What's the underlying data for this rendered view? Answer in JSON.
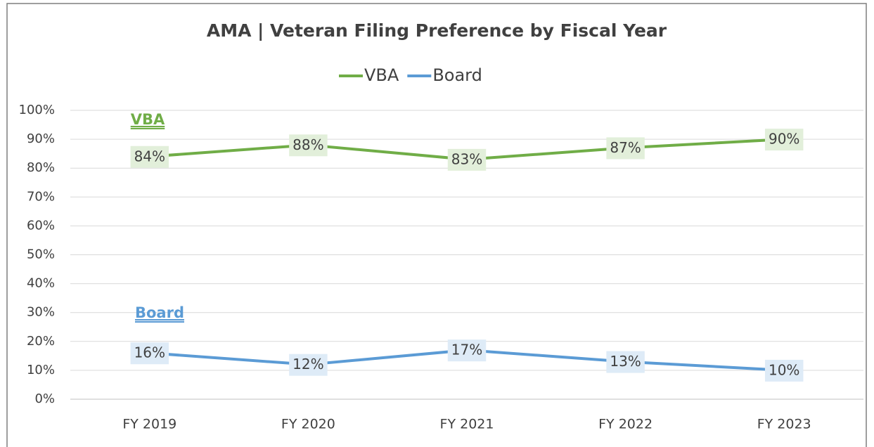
{
  "chart_data": {
    "type": "line",
    "title": "AMA | Veteran Filing Preference by Fiscal Year",
    "categories": [
      "FY 2019",
      "FY 2020",
      "FY 2021",
      "FY 2022",
      "FY 2023"
    ],
    "series": [
      {
        "name": "VBA",
        "color": "#70ad47",
        "label_bg": "#e2efda",
        "values": [
          84,
          88,
          83,
          87,
          90
        ],
        "value_labels": [
          "84%",
          "88%",
          "83%",
          "87%",
          "90%"
        ]
      },
      {
        "name": "Board",
        "color": "#5b9bd5",
        "label_bg": "#deebf7",
        "values": [
          16,
          12,
          17,
          13,
          10
        ],
        "value_labels": [
          "16%",
          "12%",
          "17%",
          "13%",
          "10%"
        ]
      }
    ],
    "annotations": [
      "VBA",
      "Board"
    ],
    "ylim": [
      0,
      100
    ],
    "yticks": [
      {
        "value": 0,
        "label": "0%"
      },
      {
        "value": 10,
        "label": "10%"
      },
      {
        "value": 20,
        "label": "20%"
      },
      {
        "value": 30,
        "label": "30%"
      },
      {
        "value": 40,
        "label": "40%"
      },
      {
        "value": 50,
        "label": "50%"
      },
      {
        "value": 60,
        "label": "60%"
      },
      {
        "value": 70,
        "label": "70%"
      },
      {
        "value": 80,
        "label": "80%"
      },
      {
        "value": 90,
        "label": "90%"
      },
      {
        "value": 100,
        "label": "100%"
      }
    ],
    "grid": true,
    "legend": "top"
  }
}
